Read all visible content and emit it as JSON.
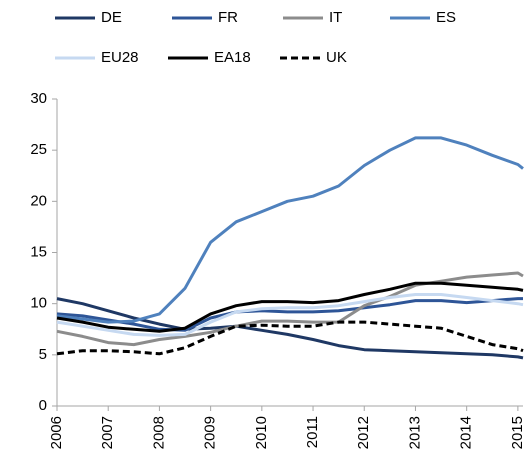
{
  "chart_data": {
    "type": "line",
    "legend": "top",
    "grid": false,
    "x": [
      2006,
      2006.5,
      2007,
      2007.5,
      2008,
      2008.5,
      2009,
      2009.5,
      2010,
      2010.5,
      2011,
      2011.5,
      2012,
      2012.5,
      2013,
      2013.5,
      2014,
      2014.5,
      2015,
      2015.1
    ],
    "xlim": [
      2006,
      2015.1
    ],
    "xticks": [
      2006,
      2007,
      2008,
      2009,
      2010,
      2011,
      2012,
      2013,
      2014,
      2015
    ],
    "ylim": [
      0,
      30
    ],
    "yticks": [
      0,
      5,
      10,
      15,
      20,
      25,
      30
    ],
    "series": [
      {
        "name": "DE",
        "color": "#1f3864",
        "dash": false,
        "values": [
          10.5,
          10.0,
          9.3,
          8.6,
          8.0,
          7.5,
          7.6,
          7.8,
          7.4,
          7.0,
          6.5,
          5.9,
          5.5,
          5.4,
          5.3,
          5.2,
          5.1,
          5.0,
          4.8,
          4.7
        ]
      },
      {
        "name": "FR",
        "color": "#2e5597",
        "dash": false,
        "values": [
          9.0,
          8.8,
          8.4,
          8.0,
          7.5,
          7.4,
          8.6,
          9.2,
          9.3,
          9.2,
          9.2,
          9.3,
          9.6,
          9.9,
          10.3,
          10.3,
          10.1,
          10.3,
          10.5,
          10.5
        ]
      },
      {
        "name": "IT",
        "color": "#8c8c8c",
        "dash": false,
        "values": [
          7.3,
          6.8,
          6.2,
          6.0,
          6.5,
          6.8,
          7.2,
          7.8,
          8.3,
          8.3,
          8.2,
          8.2,
          9.8,
          10.7,
          11.8,
          12.2,
          12.6,
          12.8,
          13.0,
          12.7
        ]
      },
      {
        "name": "ES",
        "color": "#4f81bd",
        "dash": false,
        "values": [
          8.8,
          8.5,
          8.2,
          8.3,
          9.0,
          11.5,
          16.0,
          18.0,
          19.0,
          20.0,
          20.5,
          21.5,
          23.5,
          25.0,
          26.2,
          26.2,
          25.5,
          24.5,
          23.6,
          23.2
        ]
      },
      {
        "name": "EU28",
        "color": "#c6d9f1",
        "dash": false,
        "values": [
          8.2,
          7.8,
          7.4,
          7.0,
          6.9,
          7.0,
          8.2,
          9.2,
          9.5,
          9.6,
          9.6,
          9.8,
          10.2,
          10.6,
          10.9,
          10.9,
          10.6,
          10.3,
          10.0,
          9.9
        ]
      },
      {
        "name": "EA18",
        "color": "#000000",
        "dash": false,
        "values": [
          8.6,
          8.2,
          7.7,
          7.5,
          7.3,
          7.6,
          9.0,
          9.8,
          10.2,
          10.2,
          10.1,
          10.3,
          10.9,
          11.4,
          12.0,
          12.0,
          11.8,
          11.6,
          11.4,
          11.3
        ]
      },
      {
        "name": "UK",
        "color": "#000000",
        "dash": true,
        "values": [
          5.1,
          5.4,
          5.4,
          5.3,
          5.1,
          5.7,
          6.8,
          7.8,
          7.9,
          7.8,
          7.8,
          8.2,
          8.2,
          8.0,
          7.8,
          7.6,
          6.8,
          6.0,
          5.6,
          5.4
        ]
      }
    ]
  }
}
